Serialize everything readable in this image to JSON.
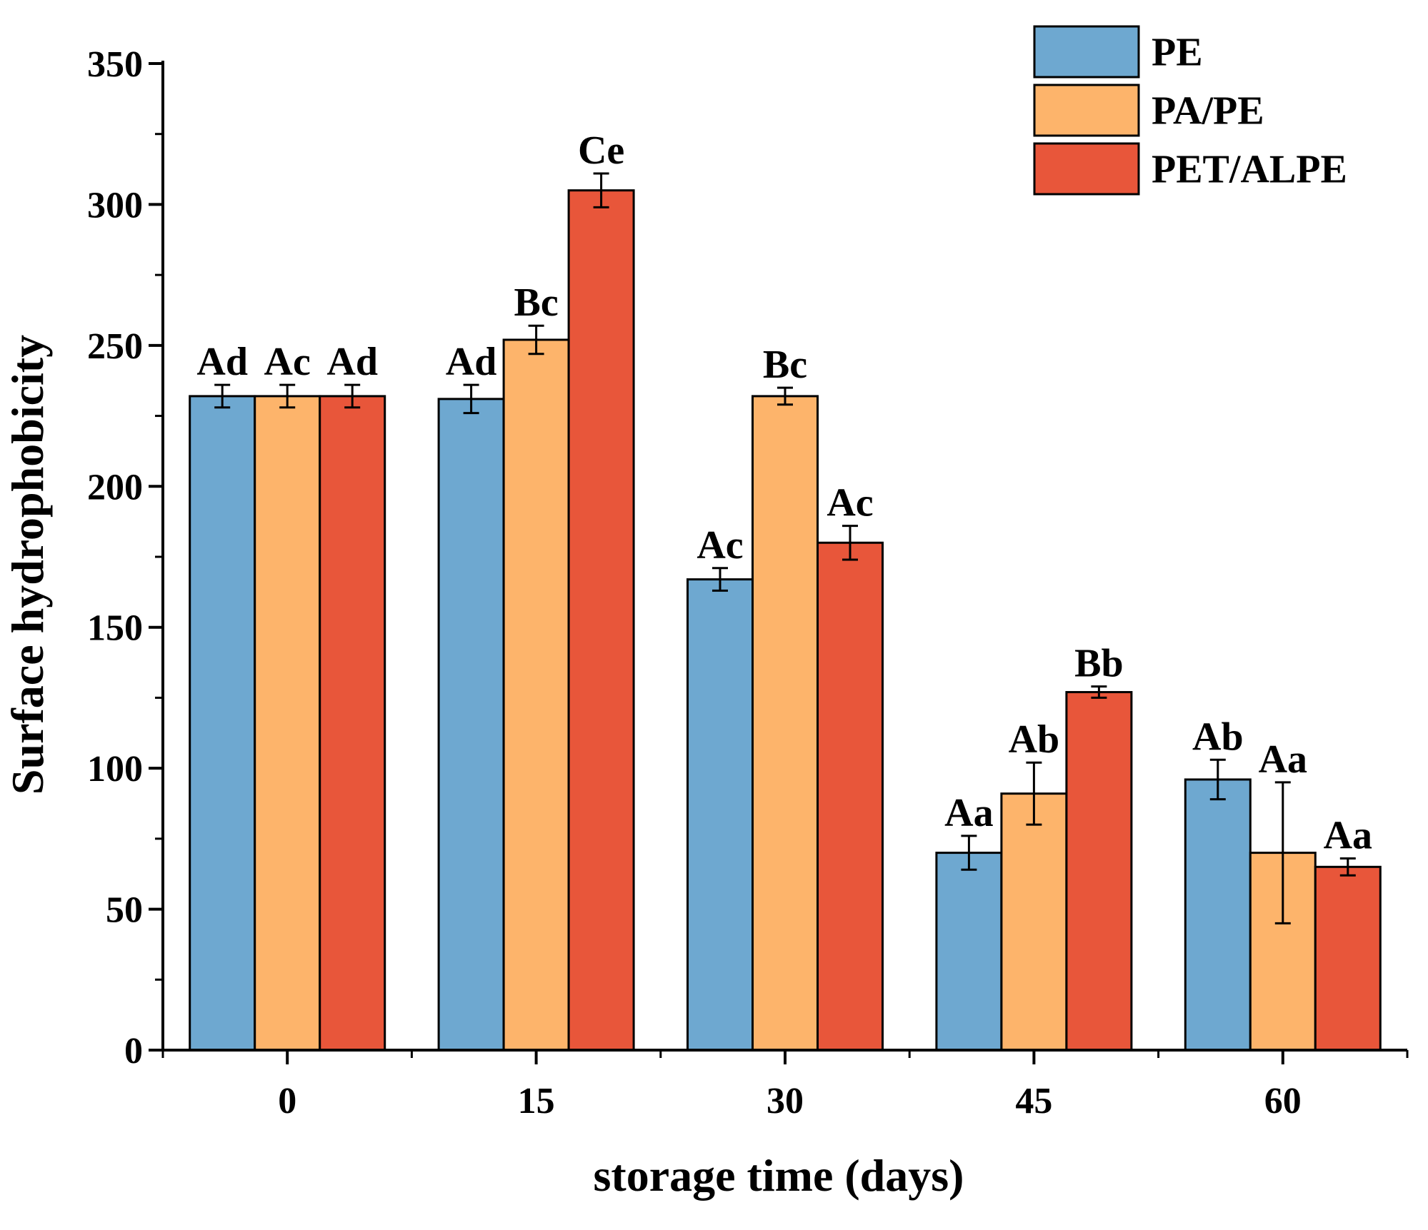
{
  "chart_data": {
    "type": "bar",
    "title": "",
    "xlabel": "storage time (days)",
    "ylabel": "Surface hydrophobicity",
    "categories": [
      "0",
      "15",
      "30",
      "45",
      "60"
    ],
    "ylim": [
      0,
      350
    ],
    "yticks": [
      0,
      50,
      100,
      150,
      200,
      250,
      300,
      350
    ],
    "legend_position": "top-right",
    "series": [
      {
        "name": "PE",
        "color": "#6ea8d0",
        "values": [
          232,
          231,
          167,
          70,
          96
        ],
        "errors": [
          4,
          5,
          4,
          6,
          7
        ],
        "labels": [
          "Ad",
          "Ad",
          "Ac",
          "Aa",
          "Ab"
        ]
      },
      {
        "name": "PA/PE",
        "color": "#fdb46b",
        "values": [
          232,
          252,
          232,
          91,
          70
        ],
        "errors": [
          4,
          5,
          3,
          11,
          25
        ],
        "labels": [
          "Ac",
          "Bc",
          "Bc",
          "Ab",
          "Aa"
        ]
      },
      {
        "name": "PET/ALPE",
        "color": "#e8563a",
        "values": [
          232,
          305,
          180,
          127,
          65
        ],
        "errors": [
          4,
          6,
          6,
          2,
          3
        ],
        "labels": [
          "Ad",
          "Ce",
          "Ac",
          "Bb",
          "Aa"
        ]
      }
    ]
  }
}
